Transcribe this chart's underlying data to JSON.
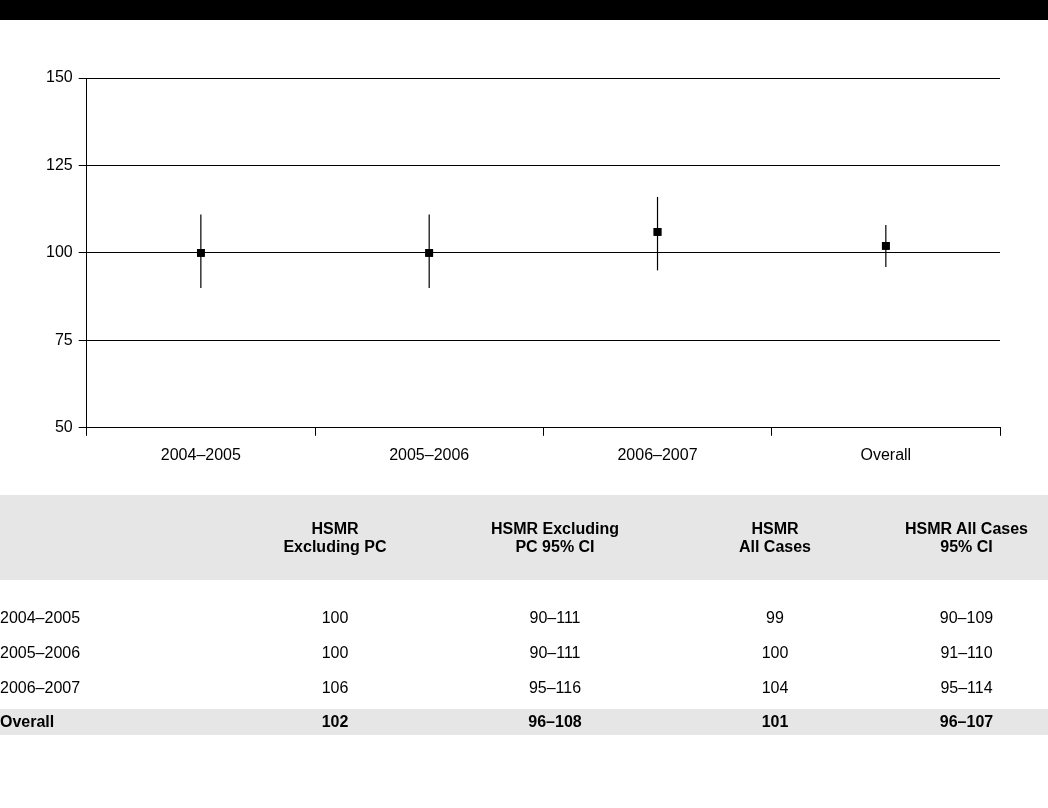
{
  "chart_data": [
    {
      "type": "scatter",
      "categories": [
        "2004–2005",
        "2005–2006",
        "2006–2007",
        "Overall"
      ],
      "values": [
        100,
        100,
        106,
        102
      ],
      "errors": [
        [
          90,
          111
        ],
        [
          90,
          111
        ],
        [
          95,
          116
        ],
        [
          96,
          108
        ]
      ],
      "color": "#000000",
      "marker": "square",
      "ylim": [
        50,
        150
      ],
      "yticks": [
        50,
        75,
        100,
        125,
        150
      ],
      "grid": "y",
      "legend": false
    },
    {
      "type": "other",
      "annotations": [
        "HSMR\nExcluding PC",
        "HSMR Excluding\nPC 95% CI",
        "HSMR\nAll Cases",
        "HSMR All Cases\n95% CI",
        "2004–2005",
        "100",
        "90–111",
        "99",
        "90–109",
        "2005–2006",
        "100",
        "90–111",
        "100",
        "91–110",
        "2006–2007",
        "106",
        "95–116",
        "104",
        "95–114",
        "Overall",
        "102",
        "96–108",
        "101",
        "96–107"
      ]
    }
  ]
}
